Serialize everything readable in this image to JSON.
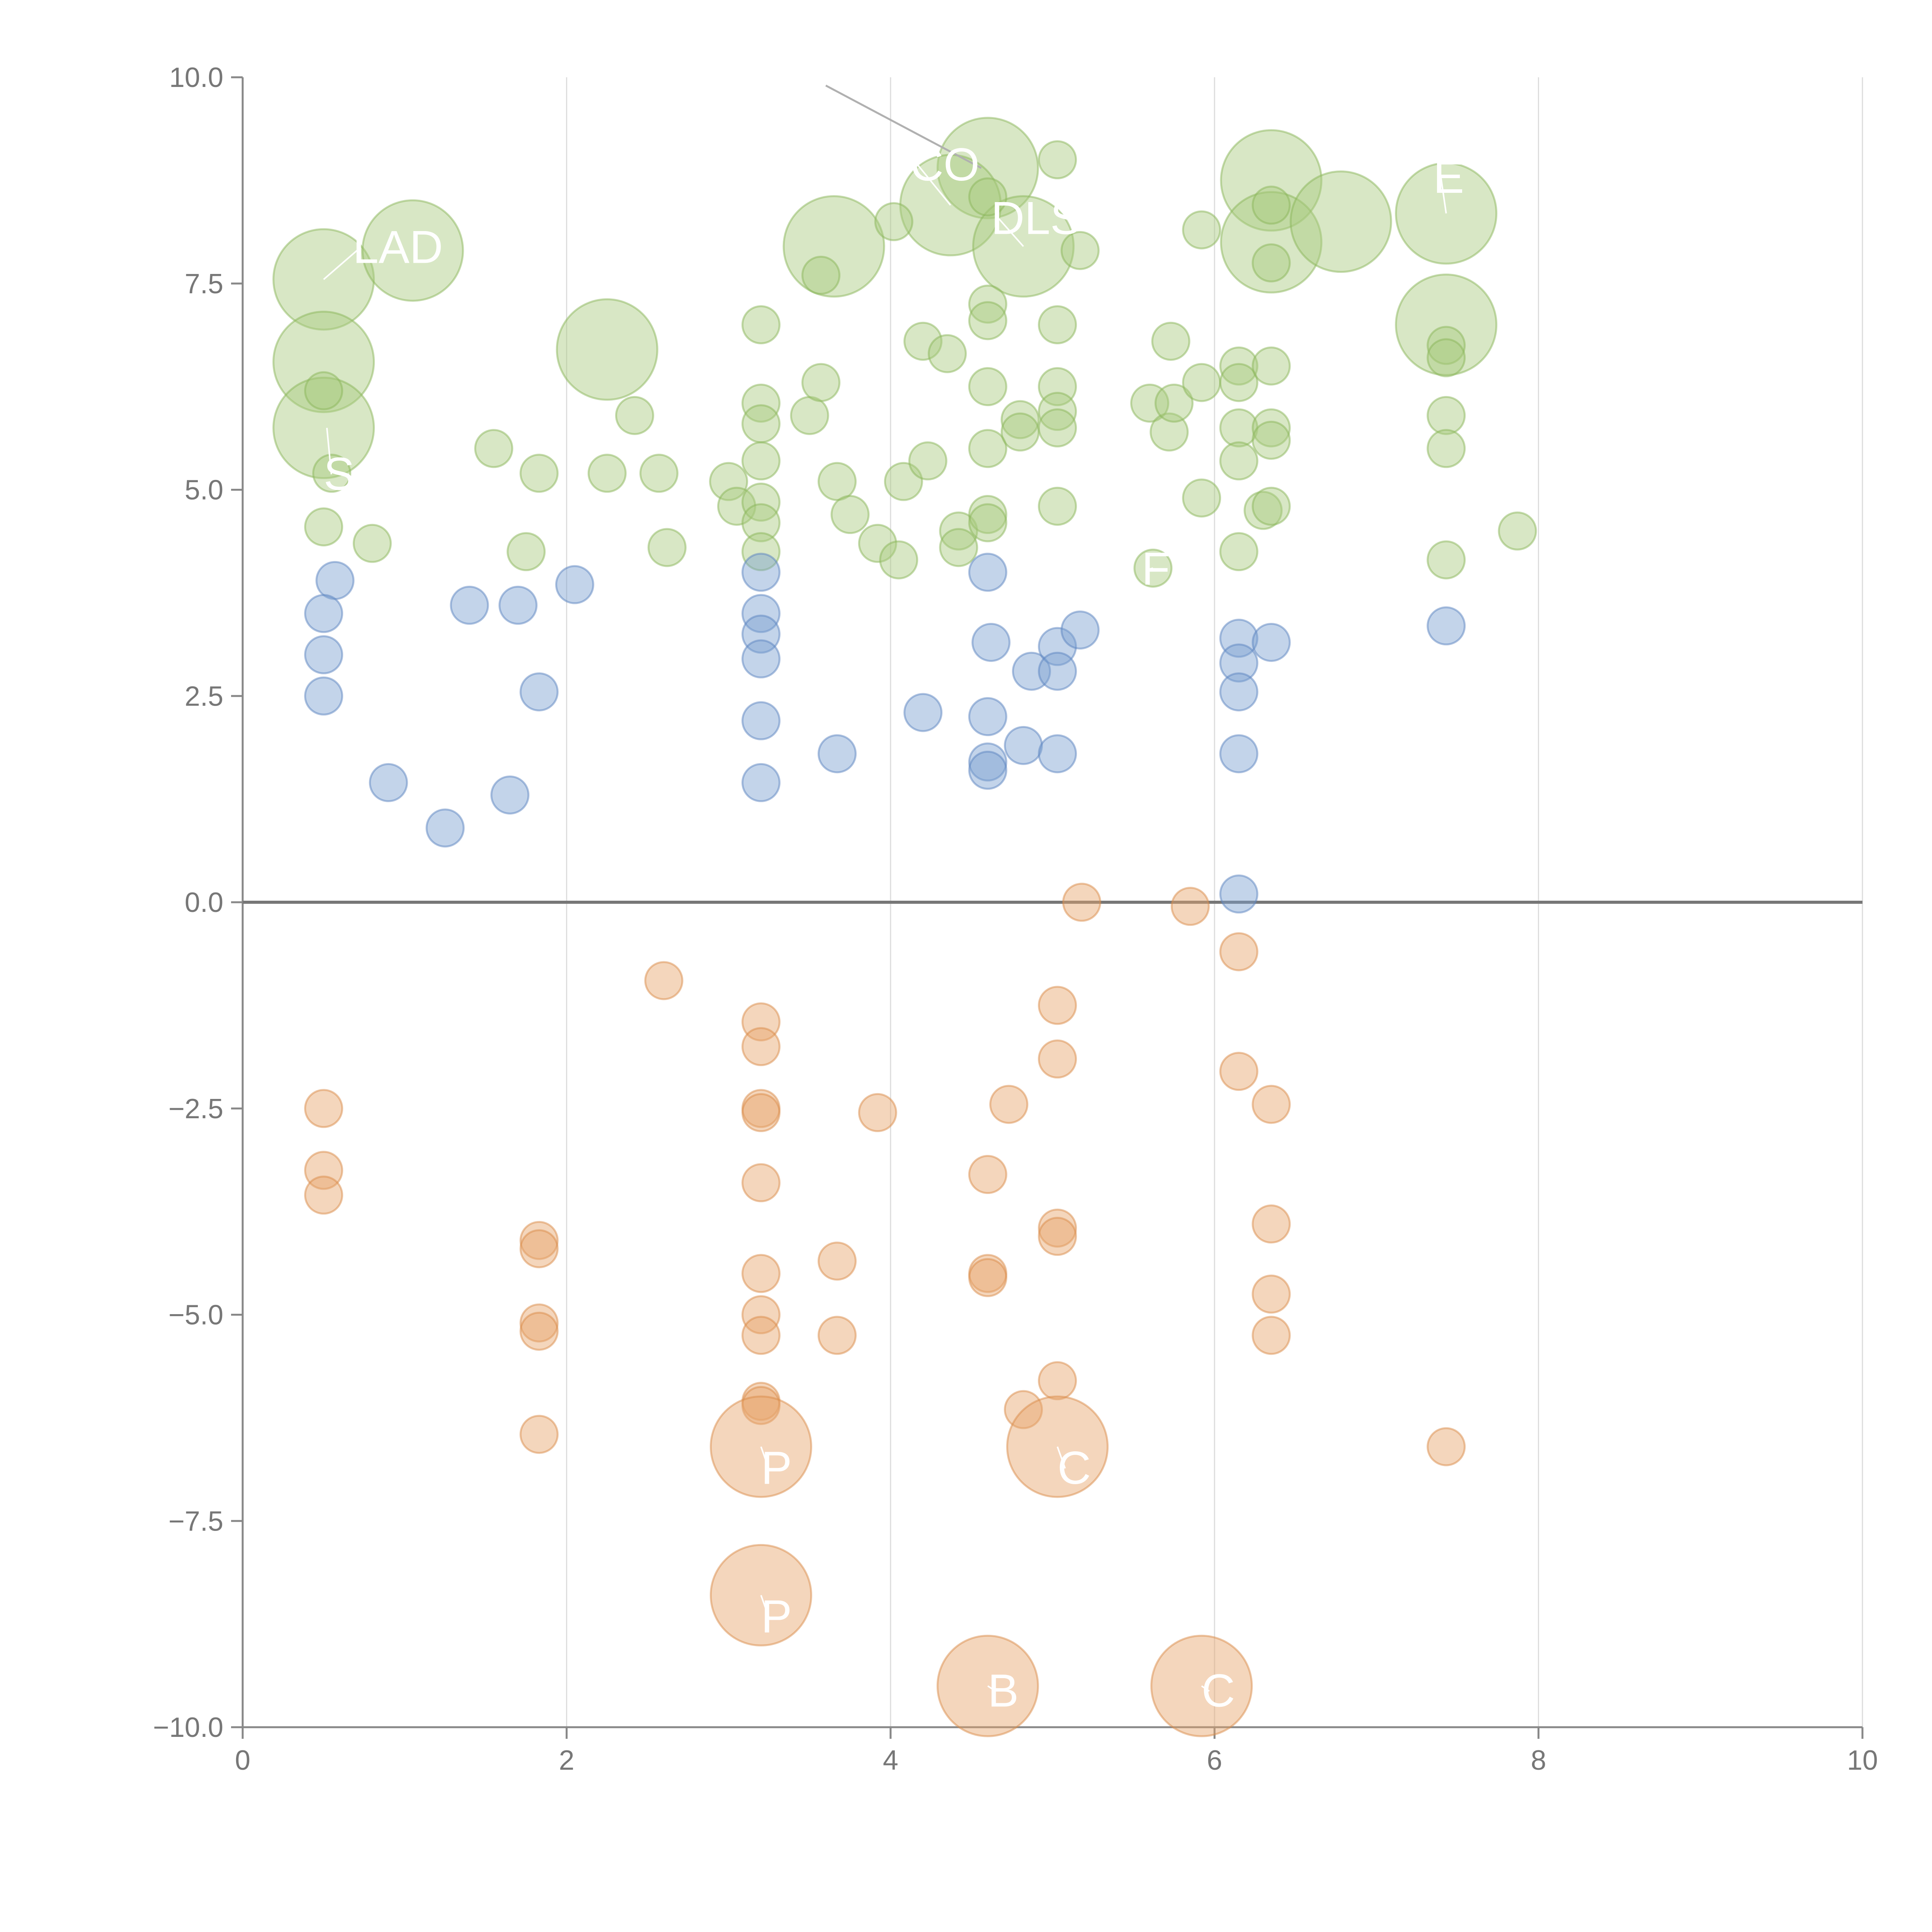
{
  "chart_data": {
    "type": "scatter",
    "title": "",
    "xlabel": "",
    "ylabel": "",
    "xlim": [
      0,
      10
    ],
    "ylim": [
      -10,
      10
    ],
    "x_ticks": [
      0,
      2,
      4,
      6,
      8,
      10
    ],
    "y_ticks": [
      -10,
      -7.5,
      -5,
      -2.5,
      0,
      2.5,
      5,
      7.5,
      10
    ],
    "x_tick_labels": [
      "0",
      "2",
      "4",
      "6",
      "8",
      "10"
    ],
    "y_tick_labels": [
      "−10.0",
      "−7.5",
      "−5.0",
      "−2.5",
      "0.0",
      "2.5",
      "5.0",
      "7.5",
      "10.0"
    ],
    "grid": "vertical",
    "legend": "none",
    "colors": {
      "green": "#a9c97e",
      "blue": "#7b9fd1",
      "orange": "#e6a36b",
      "green_stroke": "#8ab55a",
      "blue_stroke": "#5b83c0",
      "orange_stroke": "#d98c4a"
    },
    "series": [
      {
        "name": "green",
        "color": "#a9c97e",
        "points": [
          [
            0.5,
            7.55,
            3
          ],
          [
            1.05,
            7.9,
            3
          ],
          [
            2.25,
            6.7,
            3
          ],
          [
            3.65,
            7.95,
            3
          ],
          [
            4.6,
            8.9,
            3
          ],
          [
            4.37,
            8.45,
            3
          ],
          [
            4.82,
            7.95,
            3
          ],
          [
            6.35,
            8.75,
            3
          ],
          [
            6.35,
            8.0,
            3
          ],
          [
            6.78,
            8.25,
            3
          ],
          [
            7.43,
            8.35,
            3
          ],
          [
            7.43,
            7.0,
            3
          ],
          [
            0.5,
            6.55,
            3
          ],
          [
            0.5,
            5.75,
            3
          ],
          [
            0.5,
            6.2,
            1
          ],
          [
            0.55,
            5.2,
            1
          ],
          [
            0.5,
            4.55,
            1
          ],
          [
            0.8,
            4.35,
            1
          ],
          [
            1.55,
            5.5,
            1
          ],
          [
            1.83,
            5.2,
            1
          ],
          [
            1.75,
            4.25,
            1
          ],
          [
            2.25,
            5.2,
            1
          ],
          [
            2.42,
            5.9,
            1
          ],
          [
            2.57,
            5.2,
            1
          ],
          [
            2.62,
            4.3,
            1
          ],
          [
            3.0,
            5.1,
            1
          ],
          [
            3.05,
            4.8,
            1
          ],
          [
            3.2,
            7.0,
            1
          ],
          [
            3.2,
            6.05,
            1
          ],
          [
            3.2,
            5.8,
            1
          ],
          [
            3.2,
            5.35,
            1
          ],
          [
            3.2,
            4.85,
            1
          ],
          [
            3.2,
            4.6,
            1
          ],
          [
            3.2,
            4.25,
            1
          ],
          [
            3.5,
            5.9,
            1
          ],
          [
            3.57,
            6.3,
            1
          ],
          [
            3.57,
            7.6,
            1
          ],
          [
            3.67,
            5.1,
            1
          ],
          [
            3.75,
            4.7,
            1
          ],
          [
            3.92,
            4.35,
            1
          ],
          [
            4.02,
            8.25,
            1
          ],
          [
            4.05,
            4.15,
            1
          ],
          [
            4.08,
            5.1,
            1
          ],
          [
            4.2,
            6.8,
            1
          ],
          [
            4.23,
            5.35,
            1
          ],
          [
            4.35,
            6.65,
            1
          ],
          [
            4.42,
            4.5,
            1
          ],
          [
            4.42,
            4.3,
            1
          ],
          [
            4.6,
            8.55,
            1
          ],
          [
            4.6,
            7.25,
            1
          ],
          [
            4.6,
            7.05,
            1
          ],
          [
            4.6,
            6.25,
            1
          ],
          [
            4.6,
            5.5,
            1
          ],
          [
            4.6,
            4.7,
            1
          ],
          [
            4.6,
            4.6,
            1
          ],
          [
            4.8,
            5.85,
            1
          ],
          [
            4.8,
            5.7,
            1
          ],
          [
            5.03,
            9.0,
            1
          ],
          [
            5.03,
            7.0,
            1
          ],
          [
            5.03,
            6.25,
            1
          ],
          [
            5.03,
            5.95,
            1
          ],
          [
            5.03,
            5.75,
            1
          ],
          [
            5.03,
            4.8,
            1
          ],
          [
            5.17,
            7.9,
            1
          ],
          [
            5.62,
            4.05,
            1
          ],
          [
            5.6,
            6.05,
            1
          ],
          [
            5.72,
            5.7,
            1
          ],
          [
            5.73,
            6.8,
            1
          ],
          [
            5.75,
            6.05,
            1
          ],
          [
            5.92,
            8.15,
            1
          ],
          [
            5.92,
            6.3,
            1
          ],
          [
            5.92,
            4.9,
            1
          ],
          [
            6.15,
            6.5,
            1
          ],
          [
            6.15,
            6.3,
            1
          ],
          [
            6.15,
            5.75,
            1
          ],
          [
            6.15,
            5.35,
            1
          ],
          [
            6.15,
            4.25,
            1
          ],
          [
            6.3,
            4.75,
            1
          ],
          [
            6.35,
            8.45,
            1
          ],
          [
            6.35,
            7.75,
            1
          ],
          [
            6.35,
            6.5,
            1
          ],
          [
            6.35,
            5.75,
            1
          ],
          [
            6.35,
            5.6,
            1
          ],
          [
            6.35,
            4.8,
            1
          ],
          [
            7.43,
            6.75,
            1
          ],
          [
            7.43,
            6.6,
            1
          ],
          [
            7.43,
            5.9,
            1
          ],
          [
            7.43,
            5.5,
            1
          ],
          [
            7.43,
            4.15,
            1
          ],
          [
            7.87,
            4.5,
            1
          ]
        ]
      },
      {
        "name": "blue",
        "color": "#7b9fd1",
        "points": [
          [
            0.57,
            3.9,
            1
          ],
          [
            0.5,
            3.5,
            1
          ],
          [
            0.5,
            3.0,
            1
          ],
          [
            0.5,
            2.5,
            1
          ],
          [
            0.9,
            1.45,
            1
          ],
          [
            1.25,
            0.9,
            1
          ],
          [
            1.4,
            3.6,
            1
          ],
          [
            1.65,
            1.3,
            1
          ],
          [
            1.7,
            3.6,
            1
          ],
          [
            1.83,
            2.55,
            1
          ],
          [
            2.05,
            3.85,
            1
          ],
          [
            3.2,
            4.0,
            1
          ],
          [
            3.2,
            3.5,
            1
          ],
          [
            3.2,
            3.25,
            1
          ],
          [
            3.2,
            2.95,
            1
          ],
          [
            3.2,
            2.2,
            1
          ],
          [
            3.2,
            1.45,
            1
          ],
          [
            3.67,
            1.8,
            1
          ],
          [
            4.2,
            2.3,
            1
          ],
          [
            4.6,
            4.0,
            1
          ],
          [
            4.62,
            3.15,
            1
          ],
          [
            4.6,
            2.25,
            1
          ],
          [
            4.6,
            1.7,
            1
          ],
          [
            4.6,
            1.6,
            1
          ],
          [
            4.82,
            1.9,
            1
          ],
          [
            4.87,
            2.8,
            1
          ],
          [
            5.03,
            3.1,
            1
          ],
          [
            5.03,
            2.8,
            1
          ],
          [
            5.03,
            1.8,
            1
          ],
          [
            5.17,
            3.3,
            1
          ],
          [
            6.15,
            3.2,
            1
          ],
          [
            6.15,
            2.9,
            1
          ],
          [
            6.15,
            2.55,
            1
          ],
          [
            6.15,
            1.8,
            1
          ],
          [
            6.15,
            0.1,
            1
          ],
          [
            6.35,
            3.15,
            1
          ],
          [
            7.43,
            3.35,
            1
          ]
        ]
      },
      {
        "name": "orange",
        "color": "#e6a36b",
        "points": [
          [
            0.5,
            -2.5,
            1
          ],
          [
            0.5,
            -3.25,
            1
          ],
          [
            0.5,
            -3.55,
            1
          ],
          [
            1.83,
            -4.1,
            1
          ],
          [
            1.83,
            -4.2,
            1
          ],
          [
            1.83,
            -5.1,
            1
          ],
          [
            1.83,
            -5.2,
            1
          ],
          [
            1.83,
            -6.45,
            1
          ],
          [
            2.6,
            -0.95,
            1
          ],
          [
            3.2,
            -1.45,
            1
          ],
          [
            3.2,
            -1.75,
            1
          ],
          [
            3.2,
            -2.5,
            1
          ],
          [
            3.2,
            -2.55,
            1
          ],
          [
            3.2,
            -3.4,
            1
          ],
          [
            3.2,
            -4.5,
            1
          ],
          [
            3.2,
            -5.0,
            1
          ],
          [
            3.2,
            -5.25,
            1
          ],
          [
            3.2,
            -6.05,
            1
          ],
          [
            3.2,
            -6.1,
            1
          ],
          [
            3.2,
            -6.6,
            3
          ],
          [
            3.2,
            -8.4,
            3
          ],
          [
            3.67,
            -4.35,
            1
          ],
          [
            3.67,
            -5.25,
            1
          ],
          [
            3.92,
            -2.55,
            1
          ],
          [
            4.6,
            -3.3,
            1
          ],
          [
            4.6,
            -4.5,
            1
          ],
          [
            4.6,
            -4.55,
            1
          ],
          [
            4.6,
            -9.5,
            3
          ],
          [
            4.73,
            -2.45,
            1
          ],
          [
            4.82,
            -6.15,
            1
          ],
          [
            5.03,
            -1.25,
            1
          ],
          [
            5.03,
            -1.9,
            1
          ],
          [
            5.03,
            -3.95,
            1
          ],
          [
            5.03,
            -4.05,
            1
          ],
          [
            5.03,
            -5.8,
            1
          ],
          [
            5.03,
            -6.6,
            3
          ],
          [
            5.18,
            0.0,
            1
          ],
          [
            5.85,
            -0.05,
            1
          ],
          [
            5.92,
            -9.5,
            3
          ],
          [
            6.15,
            -0.6,
            1
          ],
          [
            6.15,
            -2.05,
            1
          ],
          [
            6.35,
            -2.45,
            1
          ],
          [
            6.35,
            -3.9,
            1
          ],
          [
            6.35,
            -4.75,
            1
          ],
          [
            6.35,
            -5.25,
            1
          ],
          [
            7.43,
            -6.6,
            1
          ]
        ]
      }
    ],
    "annotations": [
      {
        "text": "LAD",
        "x": 0.68,
        "y": 7.75,
        "line_x": 0.5,
        "line_y": 7.55
      },
      {
        "text": "S",
        "x": 0.5,
        "y": 5.0,
        "line_x": 0.52,
        "line_y": 5.75
      },
      {
        "text": "CO",
        "x": 4.12,
        "y": 8.75,
        "line_x": 4.37,
        "line_y": 8.45
      },
      {
        "text": "DLS",
        "x": 4.62,
        "y": 8.1,
        "line_x": 4.82,
        "line_y": 7.95
      },
      {
        "text": "E",
        "x": 7.35,
        "y": 8.6,
        "line_x": 7.43,
        "line_y": 8.35
      },
      {
        "text": "F",
        "x": 5.55,
        "y": 3.85,
        "line_x": 5.62,
        "line_y": 4.05
      },
      {
        "text": "P",
        "x": 3.2,
        "y": -7.05,
        "line_x": 3.2,
        "line_y": -6.6
      },
      {
        "text": "P",
        "x": 3.2,
        "y": -8.85,
        "line_x": 3.2,
        "line_y": -8.4
      },
      {
        "text": "B",
        "x": 4.6,
        "y": -9.75,
        "line_x": 4.6,
        "line_y": -9.5
      },
      {
        "text": "C",
        "x": 5.03,
        "y": -7.05,
        "line_x": 5.03,
        "line_y": -6.6
      },
      {
        "text": "C",
        "x": 5.92,
        "y": -9.75,
        "line_x": 5.92,
        "line_y": -9.5
      }
    ],
    "leader_line": {
      "from": [
        3.6,
        9.9
      ],
      "to": [
        4.56,
        8.9
      ]
    }
  }
}
